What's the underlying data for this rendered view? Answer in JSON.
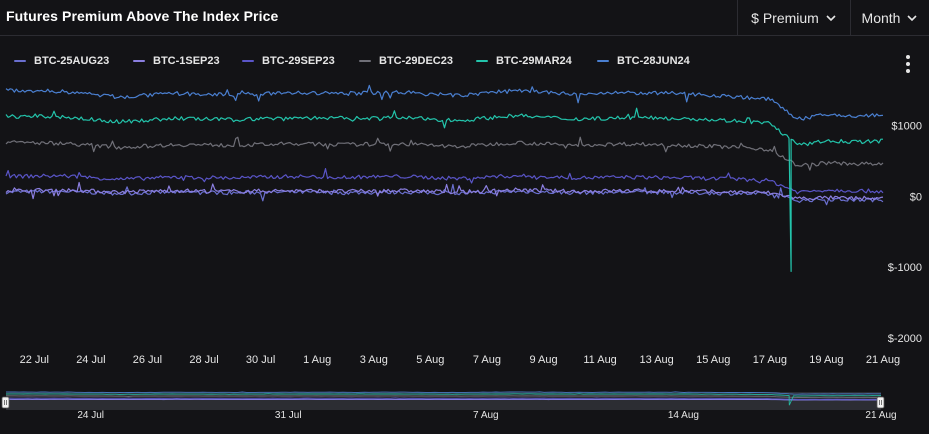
{
  "header": {
    "title": "Futures Premium Above The Index Price",
    "metric_select": "$ Premium",
    "period_select": "Month"
  },
  "icons": {
    "chevron": "chevron-down-icon",
    "menu": "more-vertical-icon"
  },
  "chart_data": {
    "type": "line",
    "title": "Futures Premium Above The Index Price",
    "xlabel": "",
    "ylabel": "",
    "x_range": [
      "2023-07-21",
      "2023-08-21"
    ],
    "ylim": [
      -2000,
      1500
    ],
    "y_ticks": [
      {
        "value": 1000,
        "label": "$1000"
      },
      {
        "value": 0,
        "label": "$0"
      },
      {
        "value": -1000,
        "label": "$-1000"
      },
      {
        "value": -2000,
        "label": "$-2000"
      }
    ],
    "x_ticks": [
      {
        "date": "2023-07-22",
        "label": "22 Jul"
      },
      {
        "date": "2023-07-24",
        "label": "24 Jul"
      },
      {
        "date": "2023-07-26",
        "label": "26 Jul"
      },
      {
        "date": "2023-07-28",
        "label": "28 Jul"
      },
      {
        "date": "2023-07-30",
        "label": "30 Jul"
      },
      {
        "date": "2023-08-01",
        "label": "1 Aug"
      },
      {
        "date": "2023-08-03",
        "label": "3 Aug"
      },
      {
        "date": "2023-08-05",
        "label": "5 Aug"
      },
      {
        "date": "2023-08-07",
        "label": "7 Aug"
      },
      {
        "date": "2023-08-09",
        "label": "9 Aug"
      },
      {
        "date": "2023-08-11",
        "label": "11 Aug"
      },
      {
        "date": "2023-08-13",
        "label": "13 Aug"
      },
      {
        "date": "2023-08-15",
        "label": "15 Aug"
      },
      {
        "date": "2023-08-17",
        "label": "17 Aug"
      },
      {
        "date": "2023-08-19",
        "label": "19 Aug"
      },
      {
        "date": "2023-08-21",
        "label": "21 Aug"
      }
    ],
    "navigator_ticks": [
      {
        "date": "2023-07-24",
        "label": "24 Jul"
      },
      {
        "date": "2023-07-31",
        "label": "31 Jul"
      },
      {
        "date": "2023-08-07",
        "label": "7 Aug"
      },
      {
        "date": "2023-08-14",
        "label": "14 Aug"
      },
      {
        "date": "2023-08-21",
        "label": "21 Aug"
      }
    ],
    "grid": false,
    "legend_position": "top-left",
    "series": [
      {
        "name": "BTC-25AUG23",
        "color": "#6a6fcf",
        "x": [
          "2023-07-21",
          "2023-07-23",
          "2023-07-25",
          "2023-07-27",
          "2023-07-29",
          "2023-07-31",
          "2023-08-02",
          "2023-08-04",
          "2023-08-06",
          "2023-08-08",
          "2023-08-10",
          "2023-08-12",
          "2023-08-14",
          "2023-08-16",
          "2023-08-17",
          "2023-08-18",
          "2023-08-19",
          "2023-08-20",
          "2023-08-21"
        ],
        "y": [
          60,
          70,
          40,
          60,
          50,
          60,
          50,
          60,
          40,
          70,
          50,
          60,
          50,
          40,
          30,
          -60,
          -40,
          -50,
          -50
        ]
      },
      {
        "name": "BTC-1SEP23",
        "color": "#8b7fe0",
        "x": [
          "2023-07-21",
          "2023-07-23",
          "2023-07-25",
          "2023-07-27",
          "2023-07-29",
          "2023-07-31",
          "2023-08-02",
          "2023-08-04",
          "2023-08-06",
          "2023-08-08",
          "2023-08-10",
          "2023-08-12",
          "2023-08-14",
          "2023-08-16",
          "2023-08-17",
          "2023-08-18",
          "2023-08-19",
          "2023-08-20",
          "2023-08-21"
        ],
        "y": [
          80,
          90,
          60,
          80,
          70,
          80,
          70,
          80,
          60,
          90,
          70,
          80,
          70,
          60,
          50,
          -30,
          -20,
          -30,
          -30
        ]
      },
      {
        "name": "BTC-29SEP23",
        "color": "#5a55c8",
        "x": [
          "2023-07-21",
          "2023-07-23",
          "2023-07-25",
          "2023-07-27",
          "2023-07-29",
          "2023-07-31",
          "2023-08-02",
          "2023-08-04",
          "2023-08-06",
          "2023-08-08",
          "2023-08-10",
          "2023-08-12",
          "2023-08-14",
          "2023-08-16",
          "2023-08-17",
          "2023-08-18",
          "2023-08-19",
          "2023-08-20",
          "2023-08-21"
        ],
        "y": [
          280,
          290,
          240,
          270,
          260,
          280,
          270,
          280,
          250,
          290,
          260,
          270,
          260,
          240,
          220,
          60,
          90,
          80,
          70
        ]
      },
      {
        "name": "BTC-29DEC23",
        "color": "#707078",
        "x": [
          "2023-07-21",
          "2023-07-23",
          "2023-07-25",
          "2023-07-27",
          "2023-07-29",
          "2023-07-31",
          "2023-08-02",
          "2023-08-04",
          "2023-08-06",
          "2023-08-08",
          "2023-08-10",
          "2023-08-12",
          "2023-08-14",
          "2023-08-16",
          "2023-08-17",
          "2023-08-18",
          "2023-08-19",
          "2023-08-20",
          "2023-08-21"
        ],
        "y": [
          760,
          750,
          690,
          730,
          720,
          740,
          730,
          740,
          700,
          760,
          720,
          740,
          720,
          690,
          660,
          430,
          470,
          460,
          450
        ]
      },
      {
        "name": "BTC-29MAR24",
        "color": "#23c4ab",
        "x": [
          "2023-07-21",
          "2023-07-23",
          "2023-07-25",
          "2023-07-27",
          "2023-07-29",
          "2023-07-31",
          "2023-08-02",
          "2023-08-04",
          "2023-08-06",
          "2023-08-08",
          "2023-08-10",
          "2023-08-12",
          "2023-08-14",
          "2023-08-16",
          "2023-08-17",
          "2023-08-18",
          "2023-08-19",
          "2023-08-20",
          "2023-08-21"
        ],
        "y": [
          1130,
          1120,
          1050,
          1100,
          1080,
          1110,
          1100,
          1110,
          1070,
          1140,
          1090,
          1110,
          1100,
          1060,
          1030,
          720,
          780,
          770,
          780
        ]
      },
      {
        "name": "BTC-28JUN24",
        "color": "#4a7fd0",
        "x": [
          "2023-07-21",
          "2023-07-23",
          "2023-07-25",
          "2023-07-27",
          "2023-07-29",
          "2023-07-31",
          "2023-08-02",
          "2023-08-04",
          "2023-08-06",
          "2023-08-08",
          "2023-08-10",
          "2023-08-12",
          "2023-08-14",
          "2023-08-16",
          "2023-08-17",
          "2023-08-18",
          "2023-08-19",
          "2023-08-20",
          "2023-08-21"
        ],
        "y": [
          1500,
          1480,
          1400,
          1450,
          1430,
          1460,
          1450,
          1470,
          1420,
          1500,
          1440,
          1460,
          1450,
          1400,
          1370,
          1090,
          1150,
          1130,
          1150
        ]
      }
    ],
    "spike": {
      "series": "BTC-29MAR24",
      "date": "2023-08-17T18:00",
      "value": -1060
    }
  }
}
